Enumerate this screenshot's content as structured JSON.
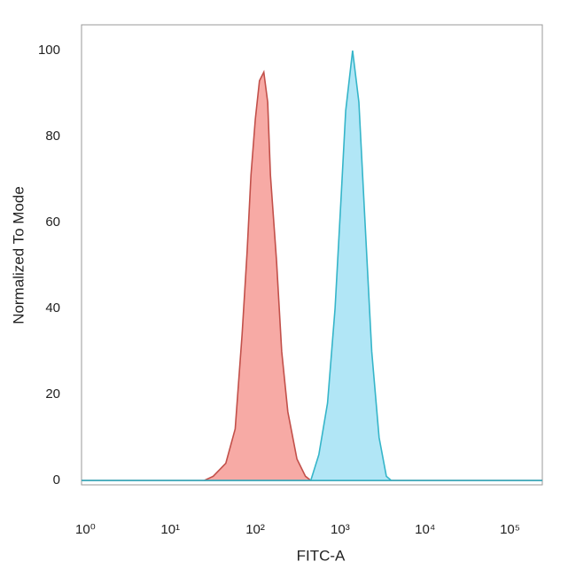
{
  "chart_data": {
    "type": "area",
    "x_label": "FITC-A",
    "y_label": "Normalized To Mode",
    "x_scale": "log",
    "xlim": [
      0.9,
      240000
    ],
    "ylim": [
      -1,
      106
    ],
    "xticks": [
      {
        "value": 1,
        "label": "10⁰"
      },
      {
        "value": 10,
        "label": "10¹"
      },
      {
        "value": 100,
        "label": "10²"
      },
      {
        "value": 1000,
        "label": "10³"
      },
      {
        "value": 10000,
        "label": "10⁴"
      },
      {
        "value": 100000,
        "label": "10⁵"
      }
    ],
    "yticks": [
      0,
      20,
      40,
      60,
      80,
      100
    ],
    "grid": false,
    "series": [
      {
        "color": "#f6a19b",
        "line_color": "#c2504a",
        "x": [
          0.9,
          25,
          32,
          45,
          58,
          70,
          80,
          89,
          100,
          112,
          126,
          140,
          151,
          178,
          205,
          242,
          310,
          390,
          450,
          240000
        ],
        "values": [
          0,
          0,
          1,
          4,
          12,
          34,
          53,
          71,
          84,
          93,
          95,
          88,
          71,
          51,
          30,
          16,
          5,
          1,
          0,
          0
        ]
      },
      {
        "color": "#a8e3f5",
        "line_color": "#35b5c9",
        "x": [
          0.9,
          450,
          560,
          710,
          870,
          1020,
          1160,
          1400,
          1660,
          1950,
          2350,
          2870,
          3500,
          4000,
          240000
        ],
        "values": [
          0,
          0,
          6,
          18,
          40,
          65,
          86,
          100,
          88,
          61,
          30,
          10,
          1,
          0,
          0
        ]
      }
    ]
  }
}
